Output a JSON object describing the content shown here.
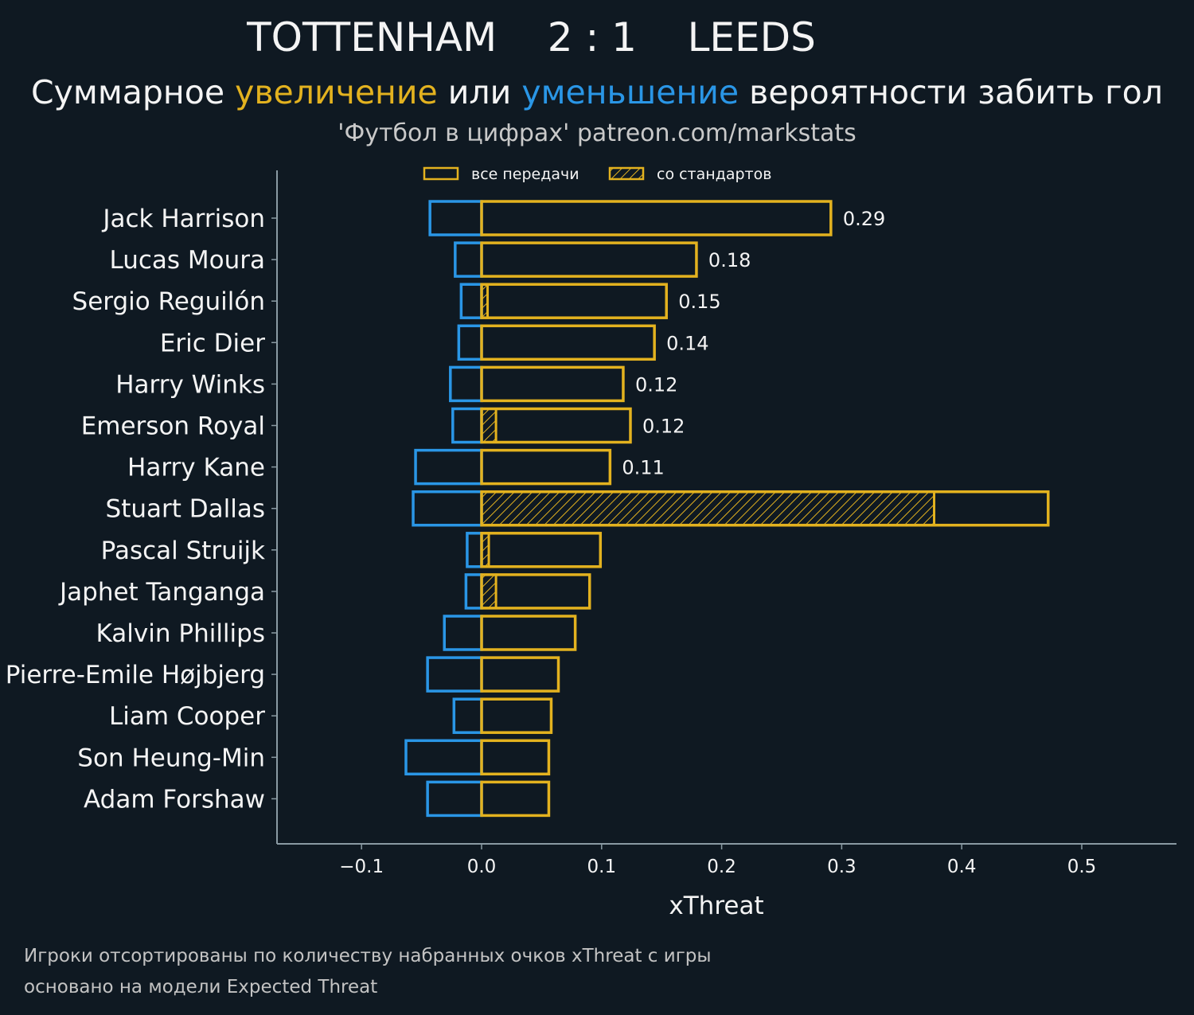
{
  "header": {
    "title": "TOTTENHAM    2 : 1    LEEDS",
    "subtitle_pre": "Суммарное ",
    "subtitle_inc": "увеличение",
    "subtitle_mid": " или ",
    "subtitle_dec": "уменьшение",
    "subtitle_post": " вероятности забить гол",
    "source": "'Футбол в цифрах' patreon.com/markstats"
  },
  "footnotes": {
    "line1": "Игроки отсортированы по количеству набранных очков xThreat с игры",
    "line2": "основано на модели Expected Threat"
  },
  "colors": {
    "background": "#0f1922",
    "increase": "#e3b21f",
    "decrease": "#2a96e6",
    "axis": "#8a9aa3",
    "text": "#f4f4f4"
  },
  "chart_data": {
    "type": "bar",
    "orientation": "horizontal",
    "xlabel": "xThreat",
    "xlim": [
      -0.17,
      0.58
    ],
    "xticks": [
      -0.1,
      0.0,
      0.1,
      0.2,
      0.3,
      0.4,
      0.5
    ],
    "xtick_labels": [
      "−0.1",
      "0.0",
      "0.1",
      "0.2",
      "0.3",
      "0.4",
      "0.5"
    ],
    "legend": {
      "position": "top-center",
      "items": [
        "все передачи",
        "со стандартов"
      ]
    },
    "categories": [
      "Jack Harrison",
      "Lucas Moura",
      "Sergio Reguilón",
      "Eric Dier",
      "Harry Winks",
      "Emerson Royal",
      "Harry Kane",
      "Stuart Dallas",
      "Pascal Struijk",
      "Japhet Tanganga",
      "Kalvin Phillips",
      "Pierre-Emile Højbjerg",
      "Liam Cooper",
      "Son Heung-Min",
      "Adam Forshaw"
    ],
    "series": [
      {
        "name": "увеличение (все передачи)",
        "values": [
          0.291,
          0.179,
          0.154,
          0.144,
          0.118,
          0.124,
          0.107,
          0.472,
          0.099,
          0.09,
          0.078,
          0.064,
          0.058,
          0.056,
          0.056
        ]
      },
      {
        "name": "увеличение (со стандартов)",
        "values": [
          0,
          0,
          0.005,
          0,
          0,
          0.012,
          0,
          0.377,
          0.006,
          0.012,
          0,
          0,
          0,
          0,
          0
        ]
      },
      {
        "name": "уменьшение",
        "values": [
          -0.043,
          -0.022,
          -0.017,
          -0.019,
          -0.026,
          -0.024,
          -0.055,
          -0.057,
          -0.012,
          -0.013,
          -0.031,
          -0.045,
          -0.023,
          -0.063,
          -0.045
        ]
      }
    ],
    "value_labels": [
      "0.29",
      "0.18",
      "0.15",
      "0.14",
      "0.12",
      "0.12",
      "0.11",
      "",
      "",
      "",
      "",
      "",
      "",
      "",
      ""
    ]
  }
}
